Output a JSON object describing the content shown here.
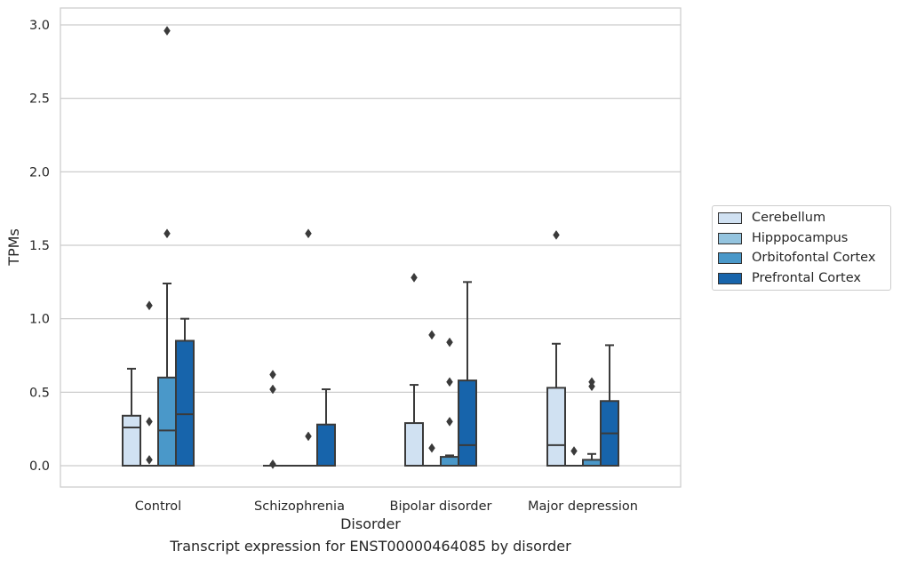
{
  "chart_data": {
    "type": "box",
    "caption": "Transcript expression for ENST00000464085 by disorder",
    "xlabel": "Disorder",
    "ylabel": "TPMs",
    "ylim": [
      -0.15,
      3.1
    ],
    "yticks": [
      "0.0",
      "0.5",
      "1.0",
      "1.5",
      "2.0",
      "2.5",
      "3.0"
    ],
    "grid": "horizontal",
    "legend_position": "right",
    "categories": [
      "Control",
      "Schizophrenia",
      "Bipolar disorder",
      "Major depression"
    ],
    "series": [
      {
        "name": "Cerebellum",
        "color": "#d0e1f2",
        "boxes": [
          {
            "whisker_low": 0.0,
            "q1": 0.0,
            "median": 0.26,
            "q3": 0.34,
            "whisker_high": 0.66,
            "outliers": []
          },
          {
            "whisker_low": 0.0,
            "q1": 0.0,
            "median": 0.0,
            "q3": 0.0,
            "whisker_high": 0.0,
            "outliers": [
              0.01,
              0.52,
              0.62
            ]
          },
          {
            "whisker_low": 0.0,
            "q1": 0.0,
            "median": 0.0,
            "q3": 0.29,
            "whisker_high": 0.55,
            "outliers": [
              1.28
            ]
          },
          {
            "whisker_low": 0.0,
            "q1": 0.0,
            "median": 0.14,
            "q3": 0.53,
            "whisker_high": 0.83,
            "outliers": [
              1.57
            ]
          }
        ]
      },
      {
        "name": "Hipppocampus",
        "color": "#94c4df",
        "boxes": [
          {
            "whisker_low": 0.0,
            "q1": 0.0,
            "median": 0.0,
            "q3": 0.0,
            "whisker_high": 0.0,
            "outliers": [
              0.04,
              0.3,
              1.09
            ]
          },
          {
            "whisker_low": 0.0,
            "q1": 0.0,
            "median": 0.0,
            "q3": 0.0,
            "whisker_high": 0.0,
            "outliers": []
          },
          {
            "whisker_low": 0.0,
            "q1": 0.0,
            "median": 0.0,
            "q3": 0.0,
            "whisker_high": 0.0,
            "outliers": [
              0.12,
              0.89
            ]
          },
          {
            "whisker_low": 0.0,
            "q1": 0.0,
            "median": 0.0,
            "q3": 0.0,
            "whisker_high": 0.0,
            "outliers": [
              0.1
            ]
          }
        ]
      },
      {
        "name": "Orbitofontal Cortex",
        "color": "#4a98c9",
        "boxes": [
          {
            "whisker_low": 0.0,
            "q1": 0.0,
            "median": 0.24,
            "q3": 0.6,
            "whisker_high": 1.24,
            "outliers": [
              1.58,
              2.96
            ]
          },
          {
            "whisker_low": 0.0,
            "q1": 0.0,
            "median": 0.0,
            "q3": 0.0,
            "whisker_high": 0.0,
            "outliers": [
              0.2,
              1.58
            ]
          },
          {
            "whisker_low": 0.0,
            "q1": 0.0,
            "median": 0.0,
            "q3": 0.06,
            "whisker_high": 0.07,
            "outliers": [
              0.3,
              0.57,
              0.84
            ]
          },
          {
            "whisker_low": 0.0,
            "q1": 0.0,
            "median": 0.0,
            "q3": 0.04,
            "whisker_high": 0.08,
            "outliers": [
              0.54,
              0.57
            ]
          }
        ]
      },
      {
        "name": "Prefrontal Cortex",
        "color": "#1764ab",
        "boxes": [
          {
            "whisker_low": 0.0,
            "q1": 0.0,
            "median": 0.35,
            "q3": 0.85,
            "whisker_high": 1.0,
            "outliers": []
          },
          {
            "whisker_low": 0.0,
            "q1": 0.0,
            "median": 0.0,
            "q3": 0.28,
            "whisker_high": 0.52,
            "outliers": []
          },
          {
            "whisker_low": 0.0,
            "q1": 0.0,
            "median": 0.14,
            "q3": 0.58,
            "whisker_high": 1.25,
            "outliers": []
          },
          {
            "whisker_low": 0.0,
            "q1": 0.0,
            "median": 0.22,
            "q3": 0.44,
            "whisker_high": 0.82,
            "outliers": []
          }
        ]
      }
    ]
  }
}
